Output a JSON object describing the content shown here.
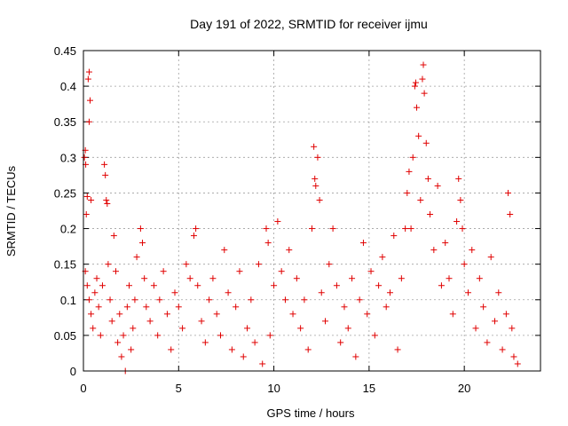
{
  "chart_data": {
    "type": "scatter",
    "title": "Day 191 of 2022, SRMTID for receiver ijmu",
    "xlabel": "GPS time / hours",
    "ylabel": "SRMTID / TECUs",
    "xlim": [
      0,
      24
    ],
    "ylim": [
      0,
      0.45
    ],
    "xticks": [
      0,
      5,
      10,
      15,
      20
    ],
    "xtick_labels": [
      "0",
      "5",
      "10",
      "15",
      "20"
    ],
    "yticks": [
      0,
      0.05,
      0.1,
      0.15,
      0.2,
      0.25,
      0.3,
      0.35,
      0.4,
      0.45
    ],
    "ytick_labels": [
      "0",
      "0.05",
      "0.1",
      "0.15",
      "0.2",
      "0.25",
      "0.3",
      "0.35",
      "0.4",
      "0.45"
    ],
    "grid": true,
    "marker": "+",
    "marker_color": "#e00000",
    "series": [
      {
        "name": "SRMTID",
        "points": [
          [
            0.05,
            0.3
          ],
          [
            0.1,
            0.31
          ],
          [
            0.12,
            0.29
          ],
          [
            0.15,
            0.22
          ],
          [
            0.2,
            0.245
          ],
          [
            0.25,
            0.41
          ],
          [
            0.3,
            0.42
          ],
          [
            0.35,
            0.38
          ],
          [
            0.3,
            0.35
          ],
          [
            0.4,
            0.24
          ],
          [
            0.1,
            0.14
          ],
          [
            0.2,
            0.12
          ],
          [
            0.3,
            0.1
          ],
          [
            0.4,
            0.08
          ],
          [
            0.5,
            0.06
          ],
          [
            0.6,
            0.11
          ],
          [
            0.7,
            0.13
          ],
          [
            0.8,
            0.09
          ],
          [
            0.9,
            0.05
          ],
          [
            1.0,
            0.12
          ],
          [
            1.1,
            0.29
          ],
          [
            1.15,
            0.275
          ],
          [
            1.2,
            0.24
          ],
          [
            1.25,
            0.235
          ],
          [
            1.3,
            0.15
          ],
          [
            1.4,
            0.1
          ],
          [
            1.5,
            0.07
          ],
          [
            1.6,
            0.19
          ],
          [
            1.7,
            0.14
          ],
          [
            1.8,
            0.04
          ],
          [
            1.9,
            0.08
          ],
          [
            2.0,
            0.02
          ],
          [
            2.1,
            0.05
          ],
          [
            2.2,
            0.0
          ],
          [
            2.3,
            0.09
          ],
          [
            2.4,
            0.12
          ],
          [
            2.5,
            0.03
          ],
          [
            2.6,
            0.06
          ],
          [
            2.7,
            0.1
          ],
          [
            2.8,
            0.16
          ],
          [
            3.0,
            0.2
          ],
          [
            3.1,
            0.18
          ],
          [
            3.2,
            0.13
          ],
          [
            3.3,
            0.09
          ],
          [
            3.5,
            0.07
          ],
          [
            3.7,
            0.12
          ],
          [
            3.9,
            0.05
          ],
          [
            4.0,
            0.1
          ],
          [
            4.2,
            0.14
          ],
          [
            4.4,
            0.08
          ],
          [
            4.6,
            0.03
          ],
          [
            4.8,
            0.11
          ],
          [
            5.0,
            0.09
          ],
          [
            5.2,
            0.06
          ],
          [
            5.4,
            0.15
          ],
          [
            5.6,
            0.13
          ],
          [
            5.8,
            0.19
          ],
          [
            5.9,
            0.2
          ],
          [
            6.0,
            0.12
          ],
          [
            6.2,
            0.07
          ],
          [
            6.4,
            0.04
          ],
          [
            6.6,
            0.1
          ],
          [
            6.8,
            0.13
          ],
          [
            7.0,
            0.08
          ],
          [
            7.2,
            0.05
          ],
          [
            7.4,
            0.17
          ],
          [
            7.6,
            0.11
          ],
          [
            7.8,
            0.03
          ],
          [
            8.0,
            0.09
          ],
          [
            8.2,
            0.14
          ],
          [
            8.4,
            0.02
          ],
          [
            8.6,
            0.06
          ],
          [
            8.8,
            0.1
          ],
          [
            9.0,
            0.04
          ],
          [
            9.2,
            0.15
          ],
          [
            9.4,
            0.01
          ],
          [
            9.6,
            0.2
          ],
          [
            9.7,
            0.18
          ],
          [
            9.8,
            0.05
          ],
          [
            10.0,
            0.12
          ],
          [
            10.2,
            0.21
          ],
          [
            10.4,
            0.14
          ],
          [
            10.6,
            0.1
          ],
          [
            10.8,
            0.17
          ],
          [
            11.0,
            0.08
          ],
          [
            11.2,
            0.13
          ],
          [
            11.4,
            0.06
          ],
          [
            11.6,
            0.1
          ],
          [
            11.8,
            0.03
          ],
          [
            12.0,
            0.2
          ],
          [
            12.1,
            0.315
          ],
          [
            12.15,
            0.27
          ],
          [
            12.2,
            0.26
          ],
          [
            12.3,
            0.3
          ],
          [
            12.4,
            0.24
          ],
          [
            12.5,
            0.11
          ],
          [
            12.7,
            0.07
          ],
          [
            12.9,
            0.15
          ],
          [
            13.1,
            0.2
          ],
          [
            13.3,
            0.12
          ],
          [
            13.5,
            0.04
          ],
          [
            13.7,
            0.09
          ],
          [
            13.9,
            0.06
          ],
          [
            14.1,
            0.13
          ],
          [
            14.3,
            0.02
          ],
          [
            14.5,
            0.1
          ],
          [
            14.7,
            0.18
          ],
          [
            14.9,
            0.08
          ],
          [
            15.1,
            0.14
          ],
          [
            15.3,
            0.05
          ],
          [
            15.5,
            0.12
          ],
          [
            15.7,
            0.16
          ],
          [
            15.9,
            0.09
          ],
          [
            16.1,
            0.11
          ],
          [
            16.3,
            0.19
          ],
          [
            16.5,
            0.03
          ],
          [
            16.7,
            0.13
          ],
          [
            16.9,
            0.2
          ],
          [
            17.0,
            0.25
          ],
          [
            17.1,
            0.28
          ],
          [
            17.2,
            0.2
          ],
          [
            17.3,
            0.3
          ],
          [
            17.4,
            0.4
          ],
          [
            17.45,
            0.405
          ],
          [
            17.5,
            0.37
          ],
          [
            17.6,
            0.33
          ],
          [
            17.7,
            0.24
          ],
          [
            17.8,
            0.41
          ],
          [
            17.85,
            0.43
          ],
          [
            17.9,
            0.39
          ],
          [
            18.0,
            0.32
          ],
          [
            18.1,
            0.27
          ],
          [
            18.2,
            0.22
          ],
          [
            18.4,
            0.17
          ],
          [
            18.6,
            0.26
          ],
          [
            18.8,
            0.12
          ],
          [
            19.0,
            0.18
          ],
          [
            19.2,
            0.13
          ],
          [
            19.4,
            0.08
          ],
          [
            19.6,
            0.21
          ],
          [
            19.7,
            0.27
          ],
          [
            19.8,
            0.24
          ],
          [
            19.9,
            0.2
          ],
          [
            20.0,
            0.15
          ],
          [
            20.2,
            0.11
          ],
          [
            20.4,
            0.17
          ],
          [
            20.6,
            0.06
          ],
          [
            20.8,
            0.13
          ],
          [
            21.0,
            0.09
          ],
          [
            21.2,
            0.04
          ],
          [
            21.4,
            0.16
          ],
          [
            21.6,
            0.07
          ],
          [
            21.8,
            0.11
          ],
          [
            22.0,
            0.03
          ],
          [
            22.2,
            0.08
          ],
          [
            22.3,
            0.25
          ],
          [
            22.4,
            0.22
          ],
          [
            22.5,
            0.06
          ],
          [
            22.6,
            0.02
          ],
          [
            22.8,
            0.01
          ]
        ]
      }
    ]
  }
}
